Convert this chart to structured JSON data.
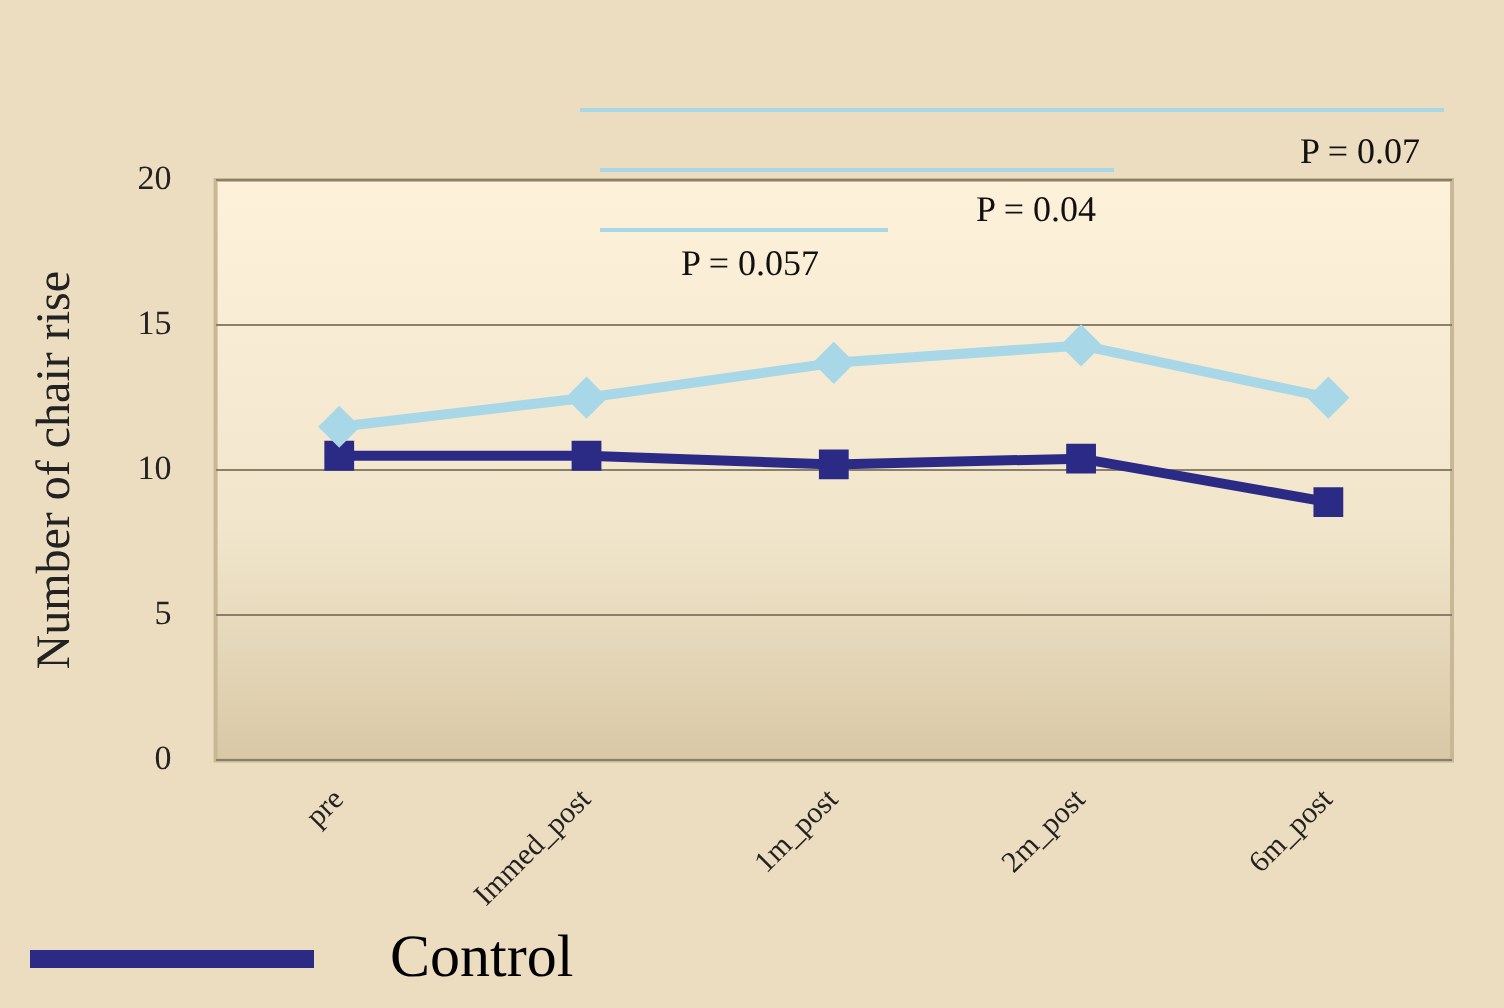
{
  "chart_data": {
    "type": "line",
    "ylabel": "Number of chair rise",
    "categories": [
      "pre",
      "Immed_post",
      "1m_post",
      "2m_post",
      "6m_post"
    ],
    "series": [
      {
        "color": "#a8d8e8",
        "marker": "diamond",
        "values": [
          11.5,
          12.5,
          13.7,
          14.3,
          12.5
        ]
      },
      {
        "name": "Control",
        "color": "#2b2b86",
        "marker": "square",
        "values": [
          10.5,
          10.5,
          10.2,
          10.4,
          8.9
        ]
      }
    ],
    "ylim": [
      0,
      20
    ],
    "yticks": [
      0,
      5,
      10,
      15,
      20
    ],
    "grid": "y",
    "legend": "bottom left",
    "annotations": [
      "P = 0.057",
      "P = 0.04",
      "P = 0.07"
    ]
  }
}
